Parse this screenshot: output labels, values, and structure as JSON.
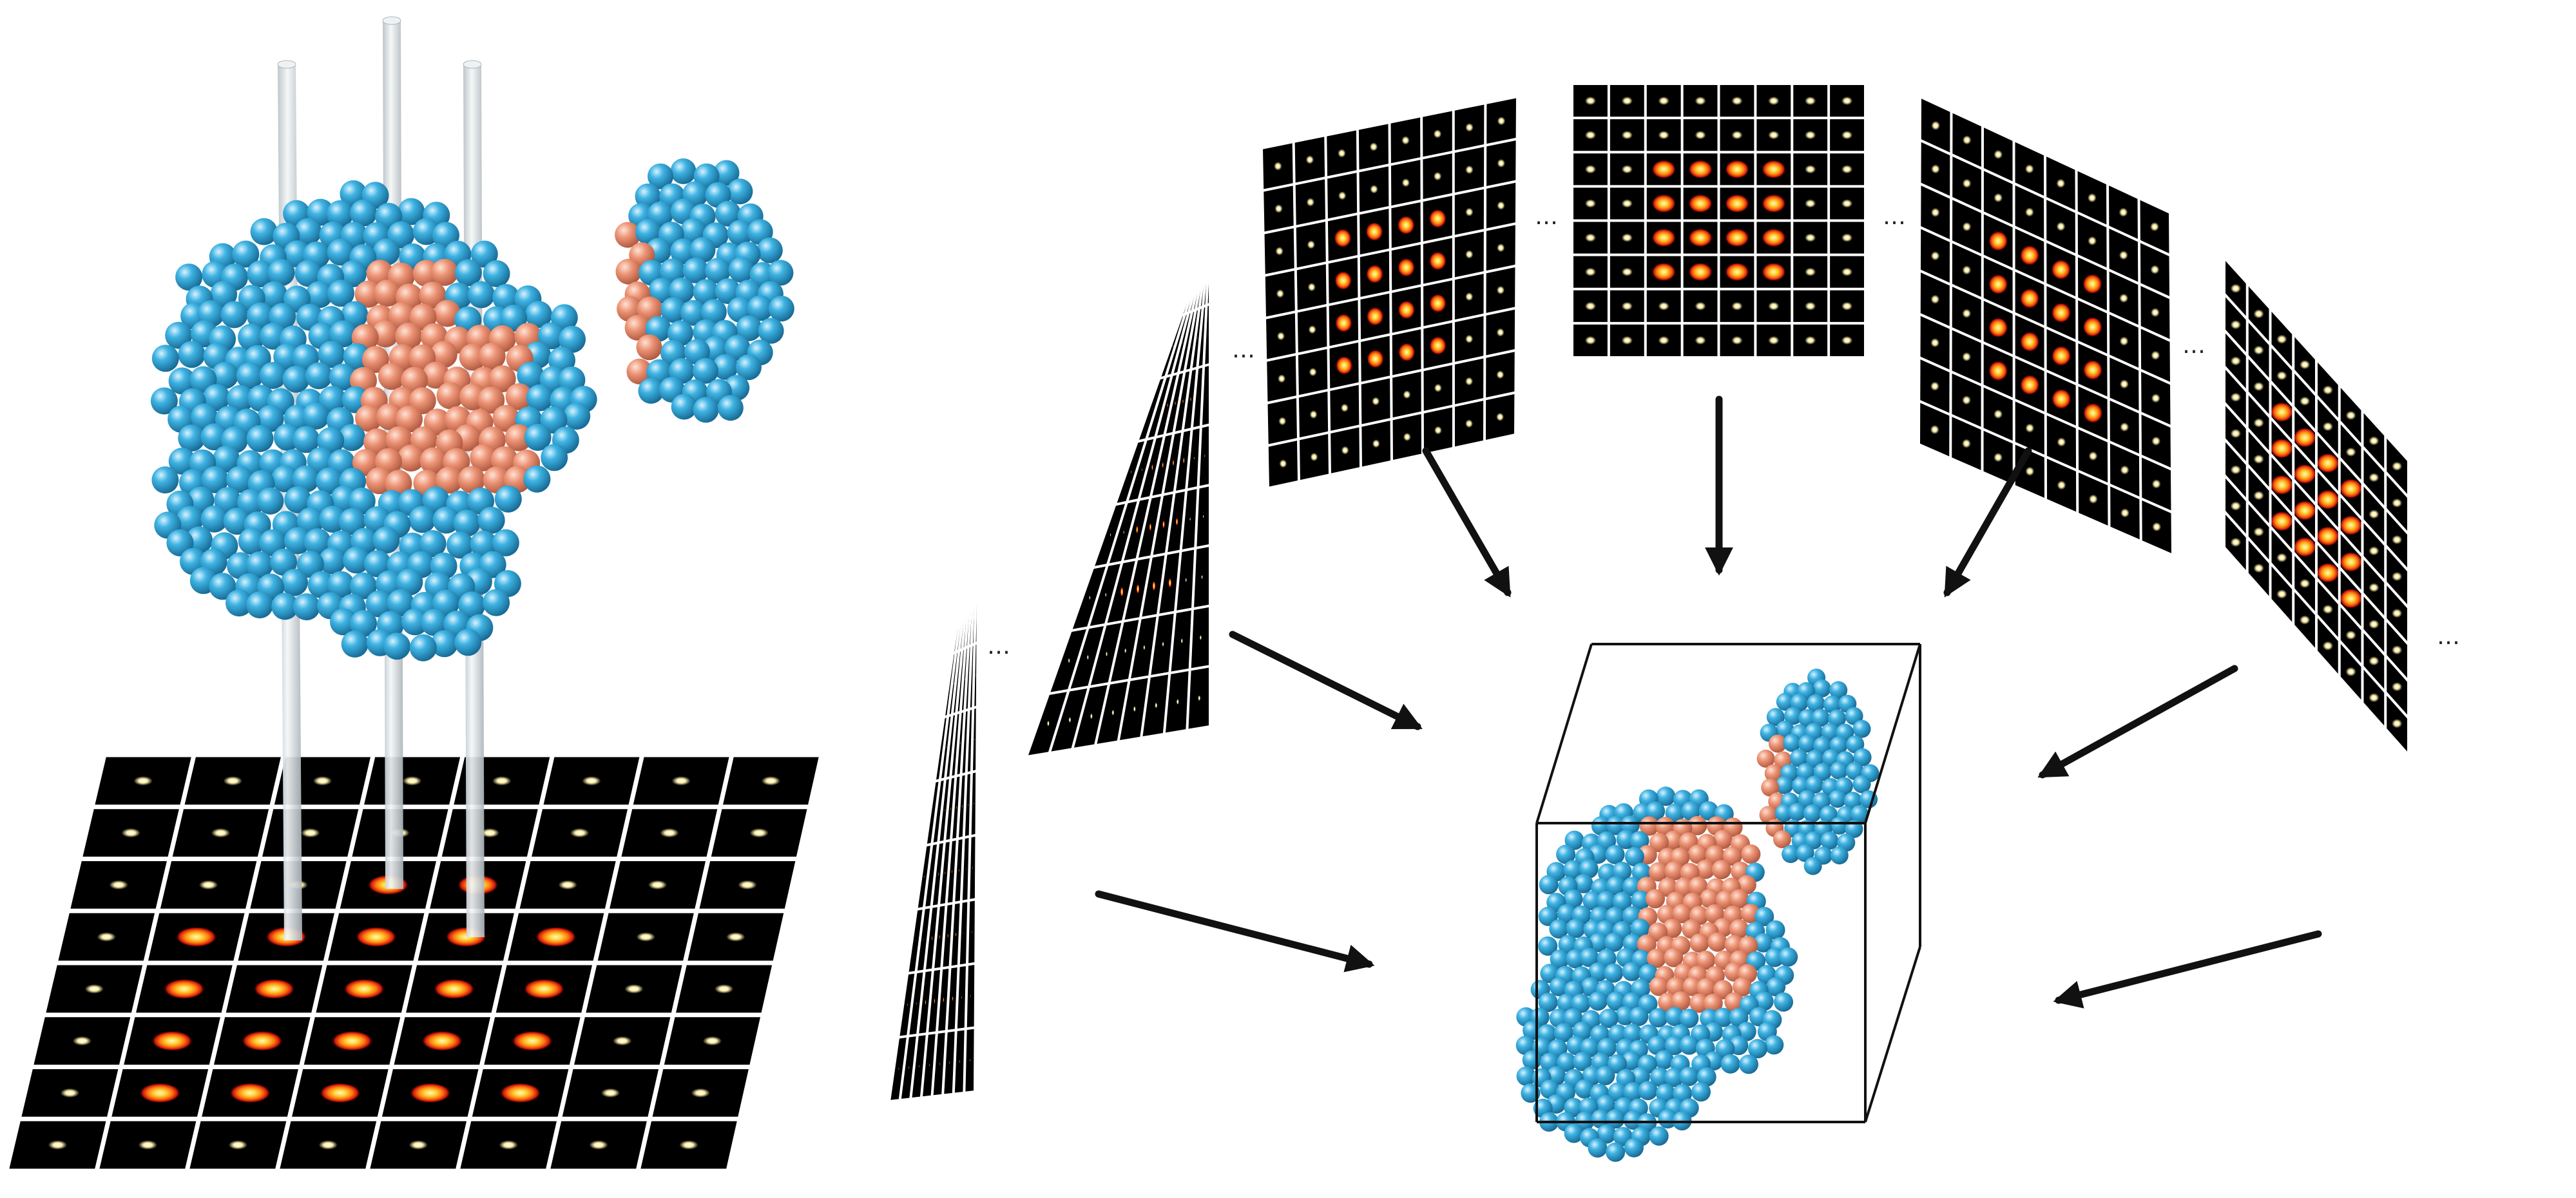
{
  "figure": {
    "colors": {
      "background": "#ffffff",
      "shell_atom": "#2a9fd0",
      "core_atom": "#e8896a",
      "panel_bg": "#000000",
      "grid_line": "#ffffff",
      "beam": "#dfe4e7",
      "arrow": "#111111",
      "hot": [
        "#fff7c8",
        "#ffd43a",
        "#ff7a10",
        "#c9160a"
      ]
    },
    "projection_count": 7,
    "ellipsis_mark": "…",
    "pattern_grid": {
      "rows": 8,
      "cols": 8
    },
    "icons": [
      "ellipsis-icon",
      "arrow-icon",
      "beam-icon",
      "atom-icon"
    ]
  }
}
